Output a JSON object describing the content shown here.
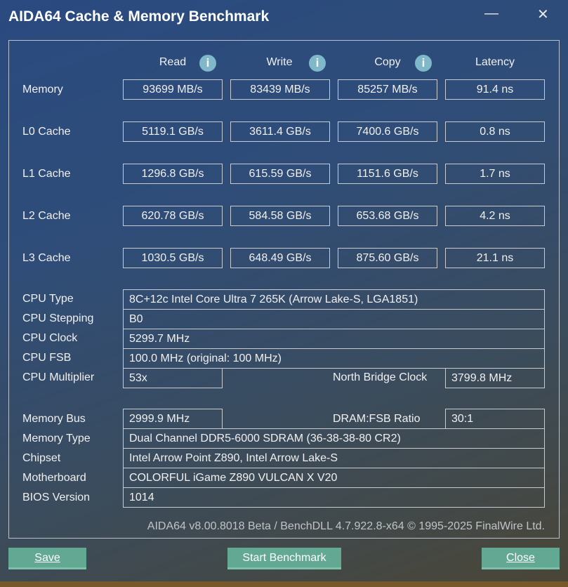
{
  "window": {
    "title": "AIDA64 Cache & Memory Benchmark",
    "minimize_icon": "minimize-icon",
    "close_icon": "close-icon"
  },
  "columns": [
    "Read",
    "Write",
    "Copy",
    "Latency"
  ],
  "bench": [
    {
      "label": "Memory",
      "values": [
        "93699 MB/s",
        "83439 MB/s",
        "85257 MB/s",
        "91.4 ns"
      ]
    },
    {
      "label": "L0 Cache",
      "values": [
        "5119.1 GB/s",
        "3611.4 GB/s",
        "7400.6 GB/s",
        "0.8 ns"
      ]
    },
    {
      "label": "L1 Cache",
      "values": [
        "1296.8 GB/s",
        "615.59 GB/s",
        "1151.6 GB/s",
        "1.7 ns"
      ]
    },
    {
      "label": "L2 Cache",
      "values": [
        "620.78 GB/s",
        "584.58 GB/s",
        "653.68 GB/s",
        "4.2 ns"
      ]
    },
    {
      "label": "L3 Cache",
      "values": [
        "1030.5 GB/s",
        "648.49 GB/s",
        "875.60 GB/s",
        "21.1 ns"
      ]
    }
  ],
  "cpu": {
    "type_label": "CPU Type",
    "type": "8C+12c Intel Core Ultra 7 265K  (Arrow Lake-S, LGA1851)",
    "stepping_label": "CPU Stepping",
    "stepping": "B0",
    "clock_label": "CPU Clock",
    "clock": "5299.7 MHz",
    "fsb_label": "CPU FSB",
    "fsb": "100.0 MHz  (original: 100 MHz)",
    "multiplier_label": "CPU Multiplier",
    "multiplier": "53x",
    "nb_clock_label": "North Bridge Clock",
    "nb_clock": "3799.8 MHz"
  },
  "memory": {
    "bus_label": "Memory Bus",
    "bus": "2999.9 MHz",
    "ratio_label": "DRAM:FSB Ratio",
    "ratio": "30:1",
    "type_label": "Memory Type",
    "type": "Dual Channel DDR5-6000 SDRAM  (36-38-38-80 CR2)",
    "chipset_label": "Chipset",
    "chipset": "Intel Arrow Point Z890, Intel Arrow Lake-S",
    "motherboard_label": "Motherboard",
    "motherboard": "COLORFUL iGame Z890 VULCAN X V20",
    "bios_label": "BIOS Version",
    "bios": "1014"
  },
  "footer": "AIDA64 v8.00.8018 Beta / BenchDLL 4.7.922.8-x64 © 1995-2025 FinalWire Ltd.",
  "buttons": {
    "save": "Save",
    "start": "Start Benchmark",
    "close": "Close"
  }
}
